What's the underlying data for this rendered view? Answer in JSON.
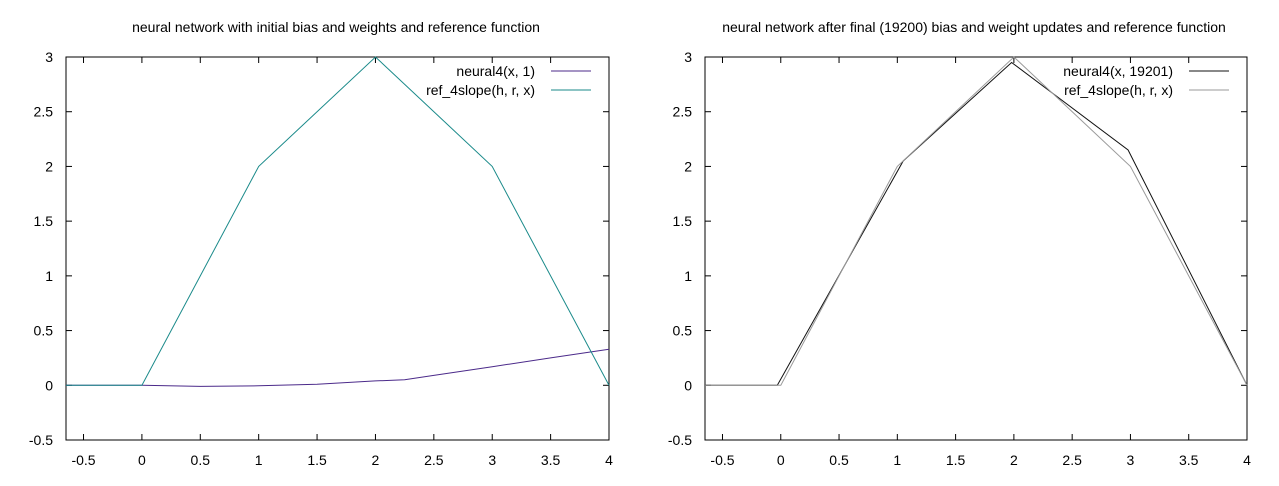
{
  "chart_data": [
    {
      "type": "line",
      "title": "neural network with initial bias and weights and reference function",
      "xlabel": "",
      "ylabel": "",
      "xlim": [
        -0.65,
        4
      ],
      "ylim": [
        -0.5,
        3
      ],
      "xticks": [
        -0.5,
        0,
        0.5,
        1,
        1.5,
        2,
        2.5,
        3,
        3.5,
        4
      ],
      "xtick_labels": [
        "-0.5",
        "0",
        "0.5",
        "1",
        "1.5",
        "2",
        "2.5",
        "3",
        "3.5",
        "4"
      ],
      "yticks": [
        -0.5,
        0,
        0.5,
        1,
        1.5,
        2,
        2.5,
        3
      ],
      "ytick_labels": [
        "-0.5",
        "0",
        "0.5",
        "1",
        "1.5",
        "2",
        "2.5",
        "3"
      ],
      "grid": false,
      "legend_position": "top-right",
      "series": [
        {
          "name": "neural4(x, 1)",
          "color": "#4b2a8a",
          "x": [
            -0.65,
            0,
            0.5,
            1,
            1.5,
            2,
            2.25,
            2.5,
            3,
            3.5,
            4
          ],
          "y": [
            0,
            0,
            -0.01,
            -0.005,
            0.01,
            0.04,
            0.05,
            0.09,
            0.17,
            0.25,
            0.33
          ]
        },
        {
          "name": "ref_4slope(h, r, x)",
          "color": "#1a8a8a",
          "x": [
            -0.65,
            0,
            1,
            2,
            3,
            4
          ],
          "y": [
            0,
            0,
            2,
            3,
            2,
            0
          ]
        }
      ]
    },
    {
      "type": "line",
      "title": "neural network after final (19200) bias and weight updates and reference function",
      "xlabel": "",
      "ylabel": "",
      "xlim": [
        -0.65,
        4
      ],
      "ylim": [
        -0.5,
        3
      ],
      "xticks": [
        -0.5,
        0,
        0.5,
        1,
        1.5,
        2,
        2.5,
        3,
        3.5,
        4
      ],
      "xtick_labels": [
        "-0.5",
        "0",
        "0.5",
        "1",
        "1.5",
        "2",
        "2.5",
        "3",
        "3.5",
        "4"
      ],
      "yticks": [
        -0.5,
        0,
        0.5,
        1,
        1.5,
        2,
        2.5,
        3
      ],
      "ytick_labels": [
        "-0.5",
        "0",
        "0.5",
        "1",
        "1.5",
        "2",
        "2.5",
        "3"
      ],
      "grid": false,
      "legend_position": "top-right",
      "series": [
        {
          "name": "neural4(x, 19201)",
          "color": "#111111",
          "x": [
            -0.65,
            -0.03,
            1.05,
            1.98,
            2.98,
            4
          ],
          "y": [
            0,
            0,
            2.05,
            2.95,
            2.15,
            0
          ]
        },
        {
          "name": "ref_4slope(h, r, x)",
          "color": "#9a9a9a",
          "x": [
            -0.65,
            0,
            1,
            2,
            3,
            4
          ],
          "y": [
            0,
            0,
            2,
            3,
            2,
            0
          ]
        }
      ]
    }
  ]
}
